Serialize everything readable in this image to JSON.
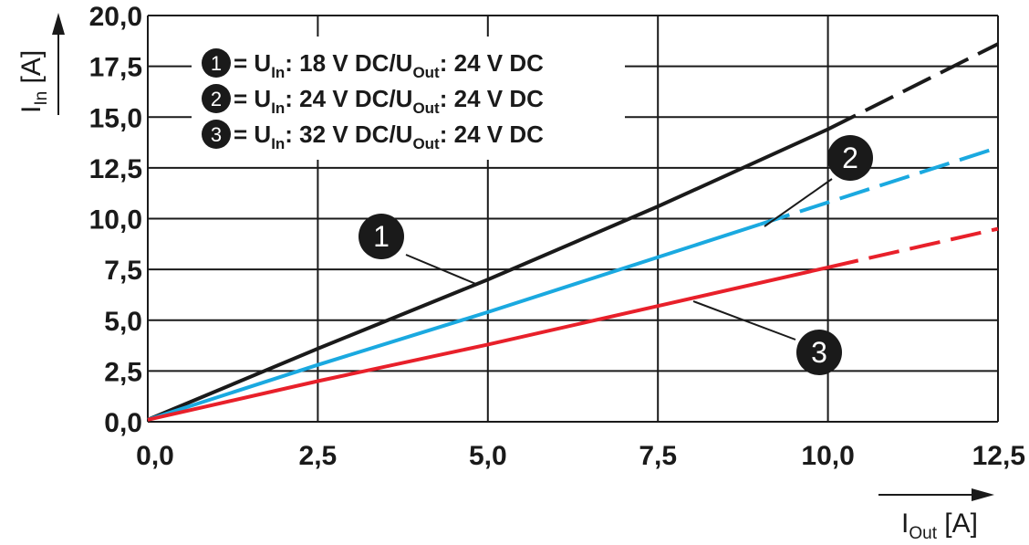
{
  "chart_data": {
    "type": "line",
    "x_axis": {
      "label_main": "I",
      "label_sub": "Out",
      "label_unit": " [A]",
      "range": [
        0,
        12.5
      ],
      "ticks": [
        "0,0",
        "2,5",
        "5,0",
        "7,5",
        "10,0",
        "12,5"
      ]
    },
    "y_axis": {
      "label_main": "I",
      "label_sub": "In",
      "label_unit": " [A]",
      "range": [
        0,
        20
      ],
      "ticks": [
        "0,0",
        "2,5",
        "5,0",
        "7,5",
        "10,0",
        "12,5",
        "15,0",
        "17,5",
        "20,0"
      ]
    },
    "grid": true,
    "series": [
      {
        "marker": "1",
        "color": "#1a1a1a",
        "legend": {
          "eq": " = U",
          "in_sub": "In",
          "mid": ": 18 V DC/U",
          "out_sub": "Out",
          "end": ": 24 V DC"
        },
        "solid_end_x": 10.0,
        "points": [
          [
            0,
            0.1
          ],
          [
            2.5,
            3.6
          ],
          [
            5.0,
            7.0
          ],
          [
            7.5,
            10.6
          ],
          [
            10.0,
            14.4
          ],
          [
            12.5,
            18.6
          ]
        ]
      },
      {
        "marker": "2",
        "color": "#1aa9e0",
        "legend": {
          "eq": " = U",
          "in_sub": "In",
          "mid": ": 24 V DC/U",
          "out_sub": "Out",
          "end": ": 24 V DC"
        },
        "solid_end_x": 9.0,
        "points": [
          [
            0,
            0.1
          ],
          [
            2.5,
            2.8
          ],
          [
            5.0,
            5.4
          ],
          [
            7.5,
            8.1
          ],
          [
            10.0,
            10.8
          ],
          [
            12.5,
            13.5
          ]
        ]
      },
      {
        "marker": "3",
        "color": "#e8202a",
        "legend": {
          "eq": " = U",
          "in_sub": "In",
          "mid": ": 32 V DC/U",
          "out_sub": "Out",
          "end": ": 24 V DC"
        },
        "solid_end_x": 10.0,
        "points": [
          [
            0,
            0.1
          ],
          [
            2.5,
            2.0
          ],
          [
            5.0,
            3.8
          ],
          [
            7.5,
            5.7
          ],
          [
            10.0,
            7.6
          ],
          [
            12.5,
            9.5
          ]
        ]
      }
    ]
  }
}
